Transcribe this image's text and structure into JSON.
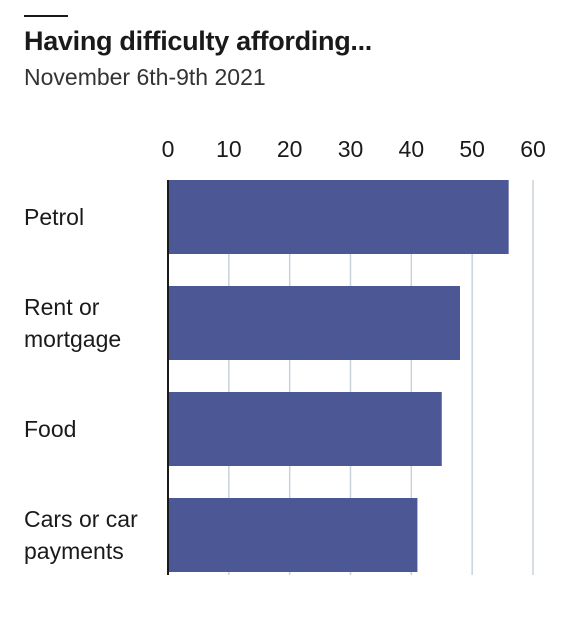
{
  "title": "Having difficulty affording...",
  "subtitle": "November 6th-9th 2021",
  "colors": {
    "bar": "#4c5896",
    "grid": "#c8d2da",
    "axis": "#1a1a1a",
    "text": "#1a1a1a"
  },
  "chart_data": {
    "type": "bar",
    "orientation": "horizontal",
    "title": "Having difficulty affording...",
    "subtitle": "November 6th-9th 2021",
    "categories": [
      "Petrol",
      "Rent or mortgage",
      "Food",
      "Cars or car payments"
    ],
    "category_lines": [
      [
        "Petrol"
      ],
      [
        "Rent or",
        "mortgage"
      ],
      [
        "Food"
      ],
      [
        "Cars or car",
        "payments"
      ]
    ],
    "values": [
      56,
      48,
      45,
      41
    ],
    "xlim": [
      0,
      60
    ],
    "ticks": [
      0,
      10,
      20,
      30,
      40,
      50,
      60
    ],
    "tick_labels": [
      "0",
      "10",
      "20",
      "30",
      "40",
      "50",
      "60"
    ],
    "tick_position": "top",
    "grid": true,
    "legend": "none"
  }
}
